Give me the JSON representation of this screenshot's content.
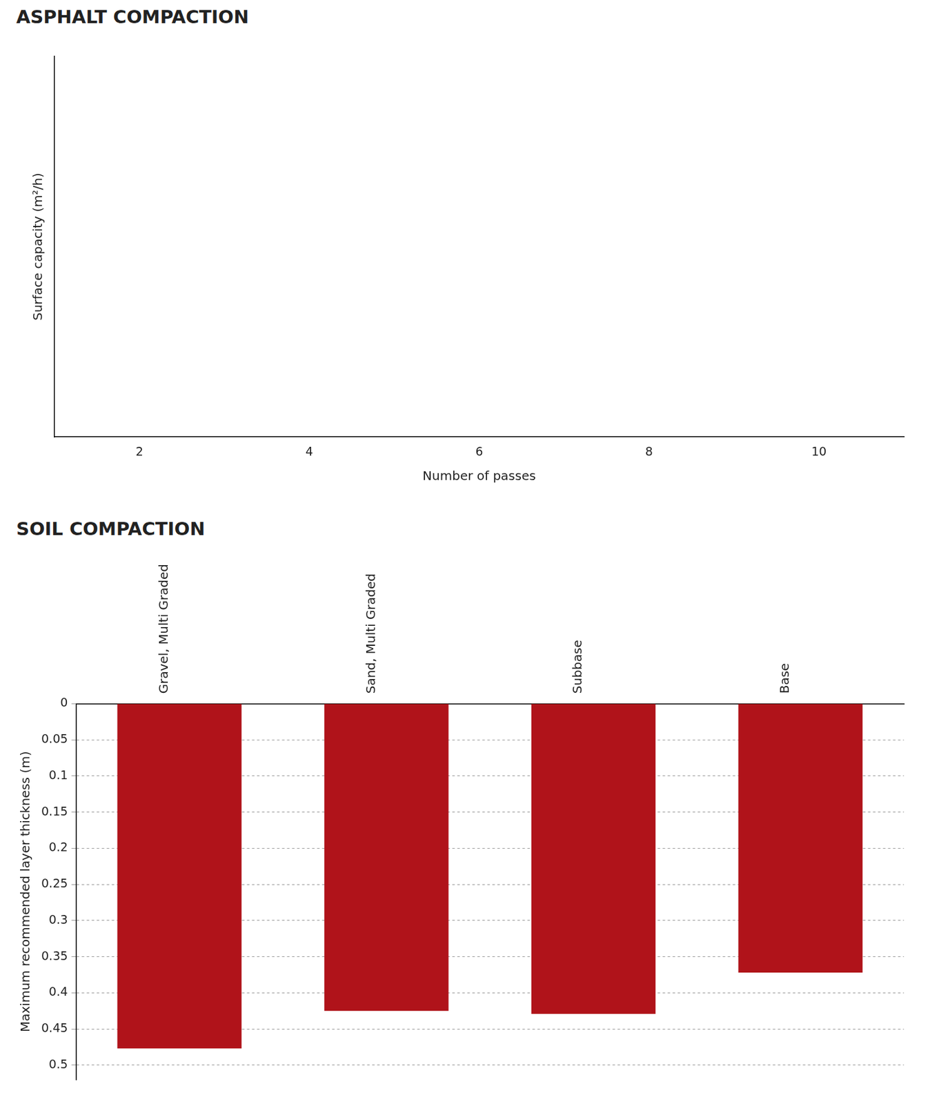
{
  "chart_data": [
    {
      "type": "line",
      "title": "ASPHALT COMPACTION",
      "x_label": "Number of passes",
      "y_label": "Surface capacity (m²/h)",
      "series": [],
      "xlim": [
        1,
        11
      ],
      "xticks": [
        2,
        4,
        6,
        8,
        10
      ],
      "tick_labels": "x",
      "grid": false
    },
    {
      "type": "bar",
      "title": "SOIL COMPACTION",
      "y_label": "Maximum recommended layer thickness (m)",
      "categories": [
        "Gravel, Multi Graded",
        "Sand, Multi Graded",
        "Subbase",
        "Base"
      ],
      "values": [
        0.477,
        0.425,
        0.429,
        0.372
      ],
      "color": "#b0131a",
      "ylim": [
        0.52,
        0
      ],
      "yticks": [
        0,
        0.05,
        0.1,
        0.15,
        0.2,
        0.25,
        0.3,
        0.35,
        0.4,
        0.45,
        0.5
      ],
      "grid": true
    }
  ]
}
